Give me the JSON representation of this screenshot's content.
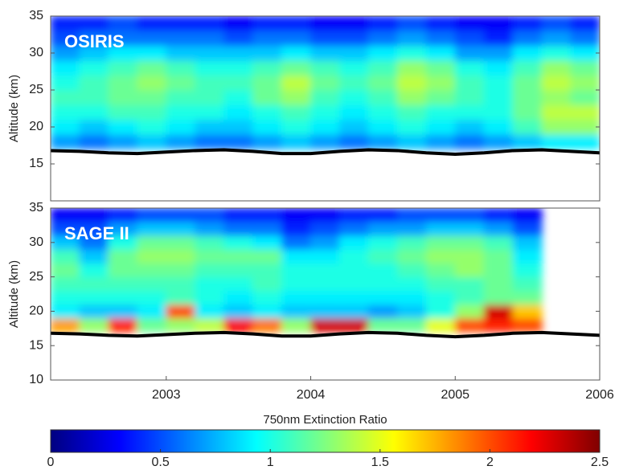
{
  "chart_data": [
    {
      "type": "heatmap",
      "title": "OSIRIS",
      "ylabel": "Altitude (km)",
      "xlim": [
        2002.2,
        2006
      ],
      "ylim": [
        10,
        35
      ],
      "yticks": [
        15,
        20,
        25,
        30,
        35
      ],
      "x": [
        2002.3,
        2002.5,
        2002.7,
        2002.9,
        2003.1,
        2003.3,
        2003.5,
        2003.7,
        2003.9,
        2004.1,
        2004.3,
        2004.5,
        2004.7,
        2004.9,
        2005.1,
        2005.3,
        2005.5,
        2005.7,
        2005.9
      ],
      "y": [
        18,
        20,
        22,
        24,
        26,
        28,
        30,
        32,
        34
      ],
      "z": [
        [
          0.7,
          0.6,
          0.7,
          0.8,
          0.7,
          0.6,
          0.6,
          0.7,
          0.8,
          0.7,
          0.6,
          0.7,
          0.8,
          0.7,
          0.6,
          0.7,
          0.8,
          0.9,
          0.9
        ],
        [
          0.9,
          0.8,
          0.9,
          1.0,
          0.9,
          0.8,
          0.8,
          0.9,
          1.0,
          0.9,
          0.8,
          0.9,
          1.0,
          0.9,
          0.8,
          0.9,
          1.1,
          1.3,
          1.3
        ],
        [
          1.0,
          1.0,
          1.1,
          1.1,
          1.0,
          1.0,
          0.9,
          1.0,
          1.1,
          1.0,
          0.9,
          1.0,
          1.1,
          1.0,
          1.0,
          1.0,
          1.2,
          1.4,
          1.4
        ],
        [
          1.1,
          1.1,
          1.2,
          1.2,
          1.1,
          1.1,
          1.0,
          1.2,
          1.3,
          1.1,
          1.0,
          1.1,
          1.3,
          1.2,
          1.1,
          1.0,
          1.2,
          1.3,
          1.2
        ],
        [
          1.0,
          1.1,
          1.2,
          1.3,
          1.2,
          1.1,
          1.1,
          1.2,
          1.4,
          1.2,
          1.1,
          1.2,
          1.4,
          1.3,
          1.1,
          1.0,
          1.2,
          1.4,
          1.3
        ],
        [
          0.9,
          1.0,
          1.1,
          1.2,
          1.1,
          1.0,
          1.0,
          1.1,
          1.2,
          1.1,
          1.0,
          1.1,
          1.3,
          1.2,
          1.0,
          0.9,
          1.1,
          1.3,
          1.2
        ],
        [
          0.7,
          0.8,
          0.9,
          0.9,
          0.8,
          0.8,
          0.8,
          0.8,
          0.9,
          0.8,
          0.8,
          0.9,
          1.0,
          0.9,
          0.7,
          0.7,
          0.9,
          1.0,
          0.9
        ],
        [
          0.5,
          0.6,
          0.6,
          0.6,
          0.6,
          0.6,
          0.5,
          0.6,
          0.6,
          0.5,
          0.5,
          0.6,
          0.7,
          0.6,
          0.5,
          0.4,
          0.6,
          0.7,
          0.6
        ],
        [
          0.4,
          0.4,
          0.5,
          0.4,
          0.4,
          0.4,
          0.3,
          0.4,
          0.4,
          0.3,
          0.3,
          0.4,
          0.5,
          0.4,
          0.3,
          0.3,
          0.4,
          0.5,
          0.4
        ]
      ]
    },
    {
      "type": "heatmap",
      "title": "SAGE II",
      "ylabel": "Altitude (km)",
      "xlim": [
        2002.2,
        2006
      ],
      "ylim": [
        10,
        35
      ],
      "yticks": [
        10,
        15,
        20,
        25,
        30,
        35
      ],
      "xticks": [
        2003,
        2004,
        2005,
        2006
      ],
      "x": [
        2002.3,
        2002.5,
        2002.7,
        2002.9,
        2003.1,
        2003.3,
        2003.5,
        2003.7,
        2003.9,
        2004.1,
        2004.3,
        2004.5,
        2004.7,
        2004.9,
        2005.1,
        2005.3,
        2005.5,
        2005.7,
        2005.9
      ],
      "y": [
        18,
        20,
        22,
        24,
        26,
        28,
        30,
        32,
        34
      ],
      "z": [
        [
          1.8,
          1.3,
          2.1,
          1.2,
          1.3,
          1.4,
          2.2,
          1.9,
          1.3,
          2.3,
          2.3,
          1.2,
          1.2,
          1.5,
          2.0,
          2.1,
          2.0,
          null,
          null
        ],
        [
          0.9,
          0.8,
          0.8,
          0.9,
          2.0,
          0.9,
          0.8,
          0.9,
          0.8,
          0.8,
          0.8,
          0.7,
          0.8,
          1.0,
          1.3,
          2.3,
          1.7,
          null,
          null
        ],
        [
          1.0,
          1.0,
          1.0,
          1.0,
          1.1,
          1.0,
          0.9,
          1.0,
          0.9,
          0.9,
          0.9,
          0.9,
          0.9,
          1.0,
          1.1,
          1.2,
          1.2,
          null,
          null
        ],
        [
          1.1,
          1.1,
          1.1,
          1.1,
          1.1,
          1.0,
          1.0,
          1.1,
          1.0,
          1.0,
          1.0,
          1.0,
          1.0,
          1.1,
          1.1,
          1.2,
          1.1,
          null,
          null
        ],
        [
          1.2,
          1.0,
          1.2,
          1.2,
          1.2,
          1.1,
          1.1,
          1.1,
          1.0,
          1.0,
          1.0,
          1.0,
          1.1,
          1.2,
          1.3,
          1.2,
          1.0,
          null,
          null
        ],
        [
          1.1,
          0.8,
          1.2,
          1.3,
          1.3,
          1.2,
          1.2,
          1.2,
          0.9,
          0.9,
          1.0,
          1.1,
          1.2,
          1.3,
          1.3,
          1.2,
          0.9,
          null,
          null
        ],
        [
          0.8,
          0.6,
          1.0,
          1.2,
          1.2,
          1.1,
          1.0,
          0.9,
          0.6,
          0.7,
          0.9,
          1.0,
          1.1,
          1.2,
          1.2,
          1.1,
          0.8,
          null,
          null
        ],
        [
          0.5,
          0.5,
          0.7,
          0.8,
          0.8,
          0.7,
          0.6,
          0.6,
          0.4,
          0.5,
          0.6,
          0.7,
          0.7,
          0.8,
          0.8,
          0.7,
          0.5,
          null,
          null
        ],
        [
          0.3,
          0.3,
          0.4,
          0.5,
          0.5,
          0.5,
          0.4,
          0.4,
          0.3,
          0.3,
          0.4,
          0.4,
          0.5,
          0.5,
          0.5,
          0.4,
          0.3,
          null,
          null
        ]
      ]
    }
  ],
  "tropopause": {
    "x": [
      2002.2,
      2002.4,
      2002.6,
      2002.8,
      2003.0,
      2003.2,
      2003.4,
      2003.6,
      2003.8,
      2004.0,
      2004.2,
      2004.4,
      2004.6,
      2004.8,
      2005.0,
      2005.2,
      2005.4,
      2005.6,
      2005.8,
      2006.0
    ],
    "values": [
      16.8,
      16.7,
      16.5,
      16.4,
      16.6,
      16.8,
      16.9,
      16.7,
      16.4,
      16.4,
      16.7,
      16.9,
      16.8,
      16.5,
      16.3,
      16.5,
      16.8,
      16.9,
      16.7,
      16.5
    ]
  },
  "colorbar": {
    "label": "750nm Extinction Ratio",
    "colormap": "jet",
    "lim": [
      0,
      2.5
    ],
    "ticks": [
      0,
      0.5,
      1,
      1.5,
      2,
      2.5
    ]
  }
}
